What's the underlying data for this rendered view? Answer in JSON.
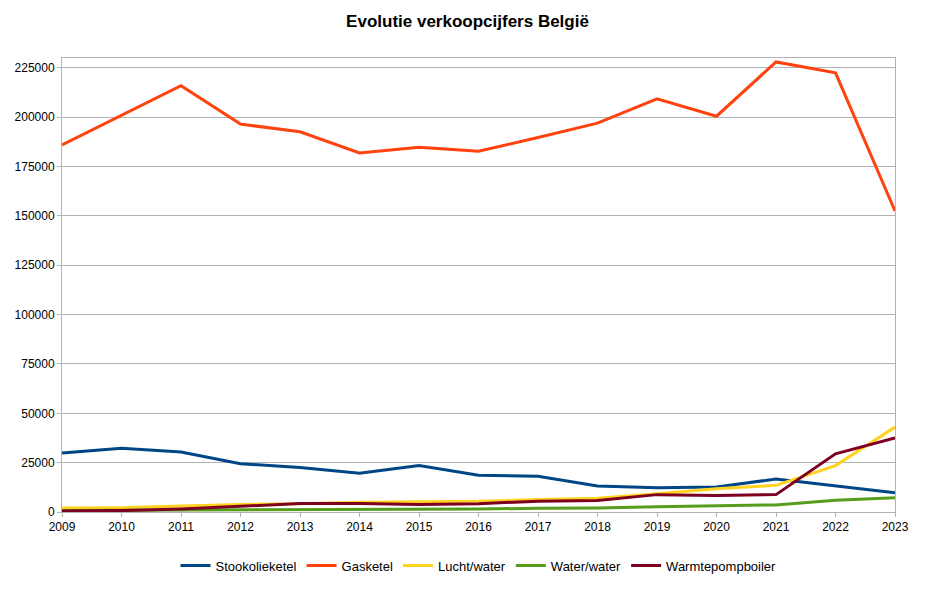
{
  "chart_data": {
    "type": "line",
    "title": "Evolutie verkoopcijfers België",
    "x": [
      2009,
      2010,
      2011,
      2012,
      2013,
      2014,
      2015,
      2016,
      2017,
      2018,
      2019,
      2020,
      2021,
      2022,
      2023
    ],
    "series": [
      {
        "name": "Stookolieketel",
        "color": "#004586",
        "values": [
          29900,
          32300,
          30400,
          24500,
          22500,
          19600,
          23500,
          18600,
          18100,
          13200,
          12300,
          12700,
          16700,
          13200,
          9800
        ]
      },
      {
        "name": "Gasketel",
        "color": "#ff420e",
        "values": [
          186000,
          201000,
          216000,
          196500,
          192600,
          181900,
          184800,
          182800,
          189700,
          197000,
          209300,
          200500,
          228000,
          222500,
          152500
        ]
      },
      {
        "name": "Lucht/water",
        "color": "#ffd320",
        "values": [
          2000,
          2200,
          3000,
          3800,
          4200,
          5000,
          5200,
          5400,
          6300,
          7000,
          9200,
          11800,
          13500,
          23500,
          43000
        ]
      },
      {
        "name": "Water/water",
        "color": "#579d1c",
        "values": [
          800,
          900,
          1000,
          1100,
          1200,
          1200,
          1300,
          1500,
          1900,
          2000,
          2600,
          3100,
          3600,
          5900,
          7200
        ]
      },
      {
        "name": "Warmtepompboiler",
        "color": "#7e0021",
        "values": [
          500,
          700,
          1500,
          2800,
          4300,
          4300,
          3800,
          4200,
          5500,
          5800,
          8800,
          8400,
          8800,
          29500,
          37500
        ]
      }
    ],
    "xlim": [
      2009,
      2023
    ],
    "xticks": [
      2009,
      2010,
      2011,
      2012,
      2013,
      2014,
      2015,
      2016,
      2017,
      2018,
      2019,
      2020,
      2021,
      2022,
      2023
    ],
    "ylim": [
      0,
      230000
    ],
    "yticks": [
      0,
      25000,
      50000,
      75000,
      100000,
      125000,
      150000,
      175000,
      200000,
      225000
    ],
    "grid": true,
    "legend": "bottom"
  }
}
